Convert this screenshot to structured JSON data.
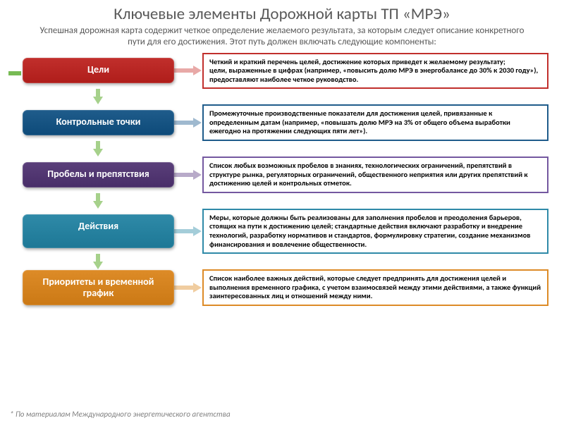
{
  "title": "Ключевые элементы Дорожной карты ТП «МРЭ»",
  "subtitle": "Успешная дорожная карта содержит четкое определение желаемого результата, за которым следует описание конкретного пути для его достижения. Этот путь должен включать следующие компоненты:",
  "footnote": "* По материалам Международного энергетического агентства",
  "colors": {
    "vertical_arrow": "#a6d18b",
    "bracket": "#77bb54",
    "text_heading": "#595959"
  },
  "items": [
    {
      "label": "Цели",
      "box_color": "#c12f2c",
      "arrow_color": "#e8a9a7",
      "border_color": "#c12f2c",
      "min_height": 36,
      "desc": "Четкий и краткий перечень целей, достижение которых приведет к желаемому результату;\nцели, выраженные в цифрах (например, «повысить долю МРЭ в энергобалансе до 30% к 2030 году»), предоставляют наиболее четкое руководство."
    },
    {
      "label": "Контрольные точки",
      "box_color": "#1f5c8b",
      "arrow_color": "#9fb9cf",
      "border_color": "#1f5c8b",
      "min_height": 36,
      "desc": "Промежуточные производственные показатели для достижения целей, привязанные к определенным датам (например, «повышать долю МРЭ на 3% от общего объема выработки ежегодно на протяжении следующих пяти лет»)."
    },
    {
      "label": "Пробелы и препятствия",
      "box_color": "#5a3f7a",
      "arrow_color": "#b8aac9",
      "border_color": "#7458a0",
      "min_height": 36,
      "desc": "Список любых возможных пробелов в знаниях, технологических ограничений, препятствий в структуре рынка, регуляторных ограничений, общественного неприятия или других препятствий к достижению целей и контрольных отметок."
    },
    {
      "label": "Действия",
      "box_color": "#2f8aa8",
      "arrow_color": "#a4cdd9",
      "border_color": "#2f8aa8",
      "min_height": 48,
      "desc": "Меры, которые должны быть реализованы для заполнения пробелов и преодоления барьеров, стоящих на пути к достижению целей; стандартные действия включают разработку и внедрение технологий, разработку нормативов и стандартов, формулировку стратегии, создание механизмов финансирования и вовлечение общественности."
    },
    {
      "label": "Приоритеты и временной график",
      "box_color": "#dd8b27",
      "arrow_color": "#f0cda0",
      "border_color": "#dd8b27",
      "min_height": 44,
      "desc": "Список наиболее важных действий, которые следует предпринять для достижения целей и выполнения временного графика, с учетом взаимосвязей между этими действиями, а также функций заинтересованных лиц и отношений между ними."
    }
  ]
}
